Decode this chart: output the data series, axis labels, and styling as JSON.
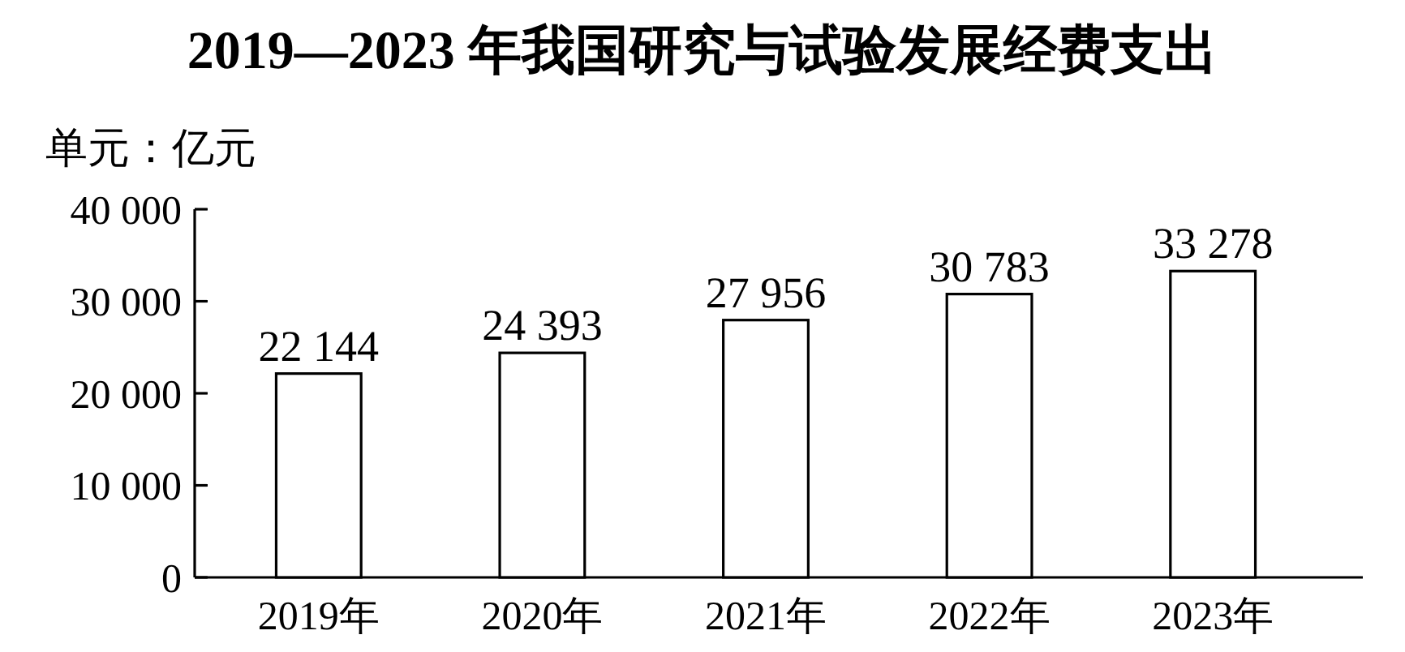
{
  "chart_data": {
    "type": "bar",
    "title": "2019—2023 年我国研究与试验发展经费支出",
    "ylabel": "单元：亿元",
    "categories": [
      "2019年",
      "2020年",
      "2021年",
      "2022年",
      "2023年"
    ],
    "values": [
      22144,
      24393,
      27956,
      30783,
      33278
    ],
    "value_labels": [
      "22 144",
      "24 393",
      "27 956",
      "30 783",
      "33 278"
    ],
    "color": "#ffffff",
    "ylim": [
      0,
      40000
    ],
    "yticks": [
      0,
      {
        "value": 10000,
        "label": "10 000"
      },
      {
        "value": 20000,
        "label": "20 000"
      },
      {
        "value": 30000,
        "label": "30 000"
      },
      {
        "value": 40000,
        "label": "40 000"
      }
    ],
    "grid": false
  }
}
